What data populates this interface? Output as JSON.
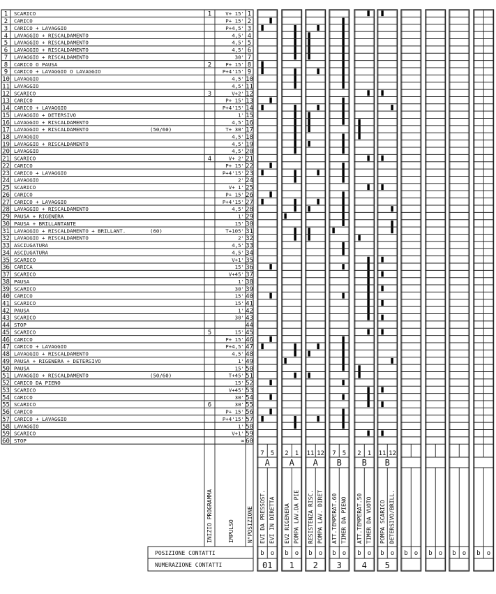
{
  "colors": {
    "line": "#222222",
    "bar": "#000000",
    "background": "#ffffff"
  },
  "rows": [
    {
      "n": "1",
      "desc": "SCARICO",
      "inizio": "1",
      "impulso": "V+ 15'"
    },
    {
      "n": "2",
      "desc": "CARICO",
      "inizio": "",
      "impulso": "P+ 15'"
    },
    {
      "n": "3",
      "desc": "CARICO + LAVAGGIO",
      "inizio": "",
      "impulso": "P+4,5'"
    },
    {
      "n": "4",
      "desc": "LAVAGGIO + RISCALDAMENTO",
      "inizio": "",
      "impulso": "4,5'"
    },
    {
      "n": "5",
      "desc": "LAVAGGIO + RISCALDAMENTO",
      "inizio": "",
      "impulso": "4,5'"
    },
    {
      "n": "6",
      "desc": "LAVAGGIO + RISCALDAMENTO",
      "inizio": "",
      "impulso": "4,5'"
    },
    {
      "n": "7",
      "desc": "LAVAGGIO + RISCALDAMENTO",
      "inizio": "",
      "impulso": "30'"
    },
    {
      "n": "8",
      "desc": "CARICO O PAUSA",
      "inizio": "2",
      "impulso": "P+ 15'"
    },
    {
      "n": "9",
      "desc": "CARICO + LAVAGGIO O LAVAGGIO",
      "inizio": "",
      "impulso": "P+4'15'"
    },
    {
      "n": "10",
      "desc": "LAVAGGIO",
      "inizio": "",
      "impulso": "4,5'"
    },
    {
      "n": "11",
      "desc": "LAVAGGIO",
      "inizio": "",
      "impulso": "4,5'"
    },
    {
      "n": "12",
      "desc": "SCARICO",
      "inizio": "3",
      "impulso": "V+2'"
    },
    {
      "n": "13",
      "desc": "CARICO",
      "inizio": "",
      "impulso": "P+ 15'"
    },
    {
      "n": "14",
      "desc": "CARICO + LAVAGGIO",
      "inizio": "",
      "impulso": "P+4'15'"
    },
    {
      "n": "15",
      "desc": "LAVAGGIO + DETERSIVO",
      "inizio": "",
      "impulso": "1'"
    },
    {
      "n": "16",
      "desc": "LAVAGGIO + RISCALDAMENTO",
      "inizio": "",
      "impulso": "4,5'"
    },
    {
      "n": "17",
      "desc": "LAVAGGIO + RISCALDAMENTO",
      "note": "(50/60)",
      "inizio": "",
      "impulso": "T+ 30'"
    },
    {
      "n": "18",
      "desc": "LAVAGGIO",
      "inizio": "",
      "impulso": "4,5'"
    },
    {
      "n": "19",
      "desc": "LAVAGGIO + RISCALDAMENTO",
      "inizio": "",
      "impulso": "4,5'"
    },
    {
      "n": "20",
      "desc": "LAVAGGIO",
      "inizio": "",
      "impulso": "4,5'"
    },
    {
      "n": "21",
      "desc": "SCARICO",
      "inizio": "4",
      "impulso": "V+ 2'"
    },
    {
      "n": "22",
      "desc": "CARICO",
      "inizio": "",
      "impulso": "P+ 15'"
    },
    {
      "n": "23",
      "desc": "CARICO + LAVAGGIO",
      "inizio": "",
      "impulso": "P+4'15'"
    },
    {
      "n": "24",
      "desc": "LAVAGGIO",
      "inizio": "",
      "impulso": "2'"
    },
    {
      "n": "25",
      "desc": "SCARICO",
      "inizio": "",
      "impulso": "V+ 1'"
    },
    {
      "n": "26",
      "desc": "CARICO",
      "inizio": "",
      "impulso": "P+ 15'"
    },
    {
      "n": "27",
      "desc": "CARICO + LAVAGGIO",
      "inizio": "",
      "impulso": "P+4'15'"
    },
    {
      "n": "28",
      "desc": "LAVAGGIO + RISCALDAMENTO",
      "inizio": "",
      "impulso": "4,5'"
    },
    {
      "n": "29",
      "desc": "PAUSA + RIGENERA",
      "inizio": "",
      "impulso": "1'"
    },
    {
      "n": "30",
      "desc": "PAUSA + BRILLANTANTE",
      "inizio": "",
      "impulso": "15'"
    },
    {
      "n": "31",
      "desc": "LAVAGGIO + RISCALDAMENTO + BRILLANT.",
      "note": "(60)",
      "inizio": "",
      "impulso": "T+105'"
    },
    {
      "n": "32",
      "desc": "LAVAGGIO + RISCALDAMENTO",
      "inizio": "",
      "impulso": "2'"
    },
    {
      "n": "33",
      "desc": "ASCIUGATURA",
      "inizio": "",
      "impulso": "4,5'"
    },
    {
      "n": "34",
      "desc": "ASCIUGATURA",
      "inizio": "",
      "impulso": "4,5'"
    },
    {
      "n": "35",
      "desc": "SCARICO",
      "inizio": "",
      "impulso": "V+1'"
    },
    {
      "n": "36",
      "desc": "CARICA",
      "inizio": "",
      "impulso": "15'"
    },
    {
      "n": "37",
      "desc": "SCARICO",
      "inizio": "",
      "impulso": "V+45'"
    },
    {
      "n": "38",
      "desc": "PAUSA",
      "inizio": "",
      "impulso": "1'"
    },
    {
      "n": "39",
      "desc": "SCARICO",
      "inizio": "",
      "impulso": "30'"
    },
    {
      "n": "40",
      "desc": "CARICO",
      "inizio": "",
      "impulso": "15'"
    },
    {
      "n": "41",
      "desc": "SCARICO",
      "inizio": "",
      "impulso": "15'"
    },
    {
      "n": "42",
      "desc": "PAUSA",
      "inizio": "",
      "impulso": "1'"
    },
    {
      "n": "43",
      "desc": "SCARICO",
      "inizio": "",
      "impulso": "30'"
    },
    {
      "n": "44",
      "desc": "STOP",
      "inizio": "",
      "impulso": ""
    },
    {
      "n": "45",
      "desc": "SCARICO",
      "inizio": "5",
      "impulso": "15'"
    },
    {
      "n": "46",
      "desc": "CARICO",
      "inizio": "",
      "impulso": "P+ 15'"
    },
    {
      "n": "47",
      "desc": "CARICO + LAVAGGIO",
      "inizio": "",
      "impulso": "P+4,5'"
    },
    {
      "n": "48",
      "desc": "LAVAGGIO + RISCALDAMENTO",
      "inizio": "",
      "impulso": "4,5'"
    },
    {
      "n": "49",
      "desc": "PAUSA + RIGENERA + DETERSIVO",
      "inizio": "",
      "impulso": "1'"
    },
    {
      "n": "50",
      "desc": "PAUSA",
      "inizio": "",
      "impulso": "15'"
    },
    {
      "n": "51",
      "desc": "LAVAGGIO + RISCALDAMENTO",
      "note": "(50/60)",
      "inizio": "",
      "impulso": "T+45'"
    },
    {
      "n": "52",
      "desc": "CARICO DA PIENO",
      "inizio": "",
      "impulso": "15'"
    },
    {
      "n": "53",
      "desc": "SCARICO",
      "inizio": "",
      "impulso": "V+45'"
    },
    {
      "n": "54",
      "desc": "CARICO",
      "inizio": "",
      "impulso": "30'"
    },
    {
      "n": "55",
      "desc": "SCARICO",
      "inizio": "6",
      "impulso": "30'"
    },
    {
      "n": "56",
      "desc": "CARICO",
      "inizio": "",
      "impulso": "P+ 15'"
    },
    {
      "n": "57",
      "desc": "CARICO + LAVAGGIO",
      "inizio": "",
      "impulso": "P+4'15'"
    },
    {
      "n": "58",
      "desc": "LAVAGGIO",
      "inizio": "",
      "impulso": "1'"
    },
    {
      "n": "59",
      "desc": "SCARICO",
      "inizio": "",
      "impulso": "V+1'"
    },
    {
      "n": "60",
      "desc": "STOP",
      "inizio": "",
      "impulso": "∞"
    }
  ],
  "column_labels": {
    "inizio": "INIZIO PROGRAMMA",
    "impulso": "IMPULSO",
    "posizione": "N°POSIZIONE"
  },
  "footer": {
    "posizione_contatti": "POSIZIONE CONTATTI",
    "numerazione_contatti": "NUMERAZIONE CONTATTI"
  },
  "cams": [
    {
      "contacts": [
        "7",
        "5"
      ],
      "bank": "A",
      "labels": [
        "EVI DA PRESSOST.",
        "EVI IN DIRETTA"
      ],
      "positions": [
        "b",
        "o"
      ],
      "number": "01",
      "bars": [
        [
          "o",
          2,
          2
        ],
        [
          "b",
          3,
          3
        ],
        [
          "b",
          8,
          9
        ],
        [
          "o",
          13,
          13
        ],
        [
          "b",
          14,
          14
        ],
        [
          "o",
          22,
          22
        ],
        [
          "b",
          23,
          23
        ],
        [
          "o",
          26,
          26
        ],
        [
          "b",
          27,
          27
        ],
        [
          "o",
          36,
          36
        ],
        [
          "o",
          40,
          40
        ],
        [
          "o",
          46,
          46
        ],
        [
          "b",
          47,
          47
        ],
        [
          "o",
          52,
          52
        ],
        [
          "o",
          54,
          54
        ],
        [
          "o",
          56,
          56
        ],
        [
          "b",
          57,
          57
        ]
      ]
    },
    {
      "contacts": [
        "2",
        "1"
      ],
      "bank": "A",
      "labels": [
        "EV2 RIGENERA",
        "POMPA LAV.DA PIE"
      ],
      "positions": [
        "b",
        "o"
      ],
      "number": "1",
      "bars": [
        [
          "o",
          3,
          7
        ],
        [
          "o",
          9,
          11
        ],
        [
          "o",
          14,
          20
        ],
        [
          "o",
          23,
          24
        ],
        [
          "o",
          27,
          28
        ],
        [
          "b",
          29,
          29
        ],
        [
          "o",
          31,
          32
        ],
        [
          "o",
          47,
          48
        ],
        [
          "b",
          49,
          49
        ],
        [
          "o",
          51,
          51
        ],
        [
          "o",
          57,
          58
        ]
      ]
    },
    {
      "contacts": [
        "11",
        "12"
      ],
      "bank": "A",
      "labels": [
        "RESISTENZA RISC.",
        "POMPA LAV. DIRET"
      ],
      "positions": [
        "b",
        "o"
      ],
      "number": "2",
      "bars": [
        [
          "o",
          3,
          3
        ],
        [
          "b",
          4,
          7
        ],
        [
          "o",
          9,
          9
        ],
        [
          "o",
          14,
          14
        ],
        [
          "b",
          15,
          17
        ],
        [
          "b",
          19,
          19
        ],
        [
          "o",
          23,
          23
        ],
        [
          "o",
          27,
          27
        ],
        [
          "b",
          28,
          28
        ],
        [
          "b",
          31,
          32
        ],
        [
          "o",
          47,
          47
        ],
        [
          "b",
          48,
          48
        ],
        [
          "b",
          51,
          51
        ],
        [
          "o",
          57,
          57
        ]
      ]
    },
    {
      "contacts": [
        "7",
        "5"
      ],
      "bank": "B",
      "labels": [
        "ATT.TEMPERAT.60",
        "TIMER DA PIENO"
      ],
      "positions": [
        "b",
        "o"
      ],
      "number": "3",
      "bars": [
        [
          "o",
          2,
          11
        ],
        [
          "o",
          13,
          16
        ],
        [
          "o",
          18,
          20
        ],
        [
          "o",
          22,
          24
        ],
        [
          "o",
          26,
          30
        ],
        [
          "b",
          31,
          31
        ],
        [
          "o",
          33,
          34
        ],
        [
          "o",
          36,
          36
        ],
        [
          "o",
          40,
          40
        ],
        [
          "o",
          46,
          50
        ],
        [
          "o",
          52,
          52
        ],
        [
          "o",
          54,
          54
        ],
        [
          "o",
          56,
          58
        ]
      ]
    },
    {
      "contacts": [
        "2",
        "1"
      ],
      "bank": "B",
      "labels": [
        "ATT.TEMPERAT.50",
        "TIMER DA VUOTO"
      ],
      "positions": [
        "b",
        "o"
      ],
      "number": "4",
      "bars": [
        [
          "o",
          1,
          1
        ],
        [
          "o",
          12,
          12
        ],
        [
          "b",
          16,
          18
        ],
        [
          "o",
          21,
          21
        ],
        [
          "o",
          25,
          25
        ],
        [
          "b",
          32,
          32
        ],
        [
          "o",
          35,
          43
        ],
        [
          "o",
          45,
          45
        ],
        [
          "b",
          50,
          51
        ],
        [
          "o",
          53,
          55
        ],
        [
          "o",
          59,
          59
        ]
      ]
    },
    {
      "contacts": [
        "11",
        "12"
      ],
      "bank": "B",
      "labels": [
        "POMPA SCARICO",
        "DETERSIVO/BRILL."
      ],
      "positions": [
        "b",
        "o"
      ],
      "number": "5",
      "bars": [
        [
          "b",
          1,
          1
        ],
        [
          "b",
          12,
          12
        ],
        [
          "o",
          14,
          14
        ],
        [
          "b",
          21,
          21
        ],
        [
          "b",
          25,
          25
        ],
        [
          "o",
          28,
          28
        ],
        [
          "o",
          30,
          31
        ],
        [
          "b",
          35,
          35
        ],
        [
          "b",
          37,
          37
        ],
        [
          "b",
          39,
          39
        ],
        [
          "b",
          41,
          41
        ],
        [
          "b",
          43,
          43
        ],
        [
          "b",
          45,
          45
        ],
        [
          "o",
          49,
          49
        ],
        [
          "b",
          53,
          53
        ],
        [
          "b",
          55,
          55
        ],
        [
          "b",
          59,
          59
        ]
      ]
    },
    {
      "contacts": [
        "",
        ""
      ],
      "bank": "",
      "labels": [
        "",
        ""
      ],
      "positions": [
        "b",
        "o"
      ],
      "number": "",
      "bars": []
    },
    {
      "contacts": [
        "",
        ""
      ],
      "bank": "",
      "labels": [
        "",
        ""
      ],
      "positions": [
        "b",
        "o"
      ],
      "number": "",
      "bars": []
    },
    {
      "contacts": [
        "",
        ""
      ],
      "bank": "",
      "labels": [
        "",
        ""
      ],
      "positions": [
        "b",
        "o"
      ],
      "number": "",
      "bars": []
    },
    {
      "contacts": [
        "",
        ""
      ],
      "bank": "",
      "labels": [
        "",
        ""
      ],
      "positions": [
        "b",
        "o"
      ],
      "number": "",
      "bars": []
    }
  ]
}
